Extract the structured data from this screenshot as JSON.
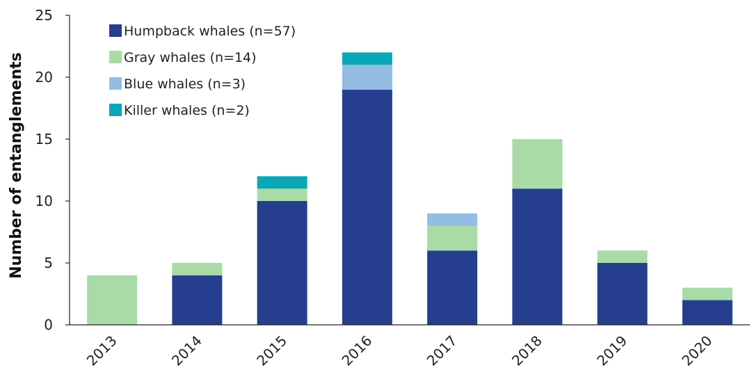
{
  "chart_data": {
    "type": "bar",
    "stacked": true,
    "title": "",
    "xlabel": "",
    "ylabel": "Number of entanglements",
    "ylim": [
      0,
      25
    ],
    "yticks": [
      0,
      5,
      10,
      15,
      20,
      25
    ],
    "grid": false,
    "legend_position": "top-left",
    "categories": [
      "2013",
      "2014",
      "2015",
      "2016",
      "2017",
      "2018",
      "2019",
      "2020"
    ],
    "series": [
      {
        "name": "Humpback whales (n=57)",
        "color": "#253f8e",
        "values": [
          0,
          4,
          10,
          19,
          6,
          11,
          5,
          2
        ]
      },
      {
        "name": "Gray whales (n=14)",
        "color": "#a8dba6",
        "values": [
          4,
          1,
          1,
          0,
          2,
          4,
          1,
          1
        ]
      },
      {
        "name": "Blue whales (n=3)",
        "color": "#93bde3",
        "values": [
          0,
          0,
          0,
          2,
          1,
          0,
          0,
          0
        ]
      },
      {
        "name": "Killer whales (n=2)",
        "color": "#0aa7b8",
        "values": [
          0,
          0,
          1,
          1,
          0,
          0,
          0,
          0
        ]
      }
    ]
  }
}
